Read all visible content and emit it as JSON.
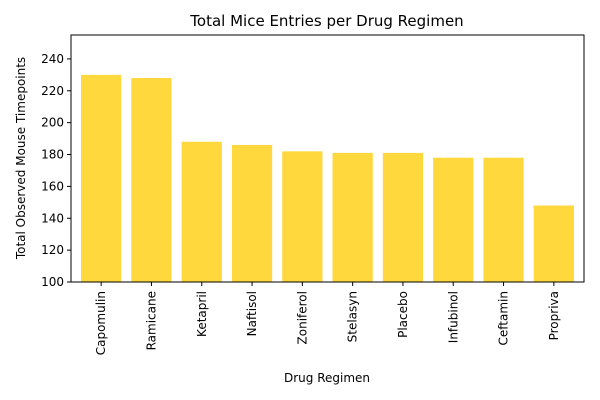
{
  "chart_data": {
    "type": "bar",
    "title": "Total Mice Entries per Drug Regimen",
    "xlabel": "Drug Regimen",
    "ylabel": "Total Observed Mouse Timepoints",
    "categories": [
      "Capomulin",
      "Ramicane",
      "Ketapril",
      "Naftisol",
      "Zoniferol",
      "Stelasyn",
      "Placebo",
      "Infubinol",
      "Ceftamin",
      "Propriva"
    ],
    "values": [
      230,
      228,
      188,
      186,
      182,
      181,
      181,
      178,
      178,
      148
    ],
    "ylim": [
      100,
      255
    ],
    "yticks": [
      100,
      120,
      140,
      160,
      180,
      200,
      220,
      240
    ],
    "bar_color": "#ffd83d",
    "grid": false,
    "legend": "none"
  }
}
